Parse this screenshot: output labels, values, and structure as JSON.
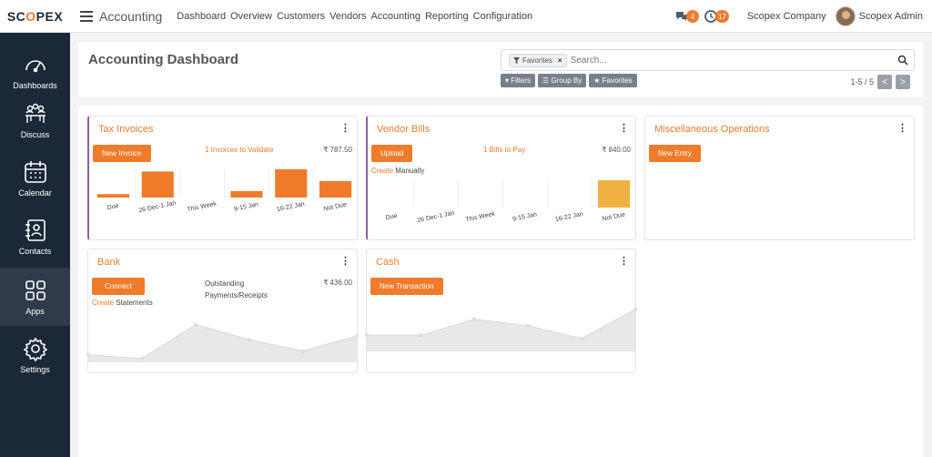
{
  "logo": {
    "part1": "SC",
    "part2": "O",
    "part3": "PEX"
  },
  "sidebar": {
    "items": [
      {
        "label": "Dashboards",
        "icon": "speedometer-icon"
      },
      {
        "label": "Discuss",
        "icon": "people-discuss-icon"
      },
      {
        "label": "Calendar",
        "icon": "calendar-icon"
      },
      {
        "label": "Contacts",
        "icon": "contacts-book-icon"
      },
      {
        "label": "Apps",
        "icon": "apps-grid-icon"
      },
      {
        "label": "Settings",
        "icon": "gear-icon"
      }
    ],
    "active": "Apps"
  },
  "topbar": {
    "app_title": "Accounting",
    "menu": [
      "Dashboard",
      "Overview",
      "Customers",
      "Vendors",
      "Accounting",
      "Reporting",
      "Configuration"
    ],
    "messages_count": "4",
    "activities_count": "17",
    "company": "Scopex Company",
    "user": "Scopex Admin"
  },
  "control": {
    "title": "Accounting Dashboard",
    "facet": "Favorites",
    "search_placeholder": "Search...",
    "filters_label": "Filters",
    "groupby_label": "Group By",
    "favorites_label": "Favorites",
    "pager": "1-5 / 5",
    "prev": "<",
    "next": ">"
  },
  "cards": {
    "tax": {
      "title": "Tax Invoices",
      "button": "New Invoice",
      "link": "1 Invoices to Validate",
      "amount": "₹ 787.50"
    },
    "vendor": {
      "title": "Vendor Bills",
      "button": "Upload",
      "link": "1 Bills to Pay",
      "amount": "₹ 840.00",
      "create": "Create",
      "create_rest": " Manually"
    },
    "misc": {
      "title": "Miscellaneous Operations",
      "button": "New Entry"
    },
    "bank": {
      "title": "Bank",
      "button": "Connect",
      "outstanding_1": "Outstanding",
      "outstanding_2": "Payments/Receipts",
      "amount": "₹ 436.00",
      "create": "Create",
      "create_rest": " Statements"
    },
    "cash": {
      "title": "Cash",
      "button": "New Transaction"
    }
  },
  "chart_data": [
    {
      "type": "bar",
      "chart": "tax_invoices",
      "categories": [
        "Due",
        "26 Dec-1 Jan",
        "This Week",
        "9-15 Jan",
        "16-22 Jan",
        "Not Due"
      ],
      "values": [
        0.8,
        6,
        0,
        1.5,
        6.5,
        3.8
      ],
      "color": "#f07b2b"
    },
    {
      "type": "bar",
      "chart": "vendor_bills",
      "categories": [
        "Due",
        "26 Dec-1 Jan",
        "This Week",
        "9-15 Jan",
        "16-22 Jan",
        "Not Due"
      ],
      "values": [
        0,
        0,
        0,
        0,
        0,
        5
      ],
      "color": "#f0b143"
    },
    {
      "type": "area",
      "chart": "bank",
      "values": [
        2,
        1,
        10,
        6,
        3,
        7
      ],
      "color": "#e8e8e8"
    },
    {
      "type": "area",
      "chart": "cash",
      "values": [
        5,
        5,
        10,
        8,
        4,
        13
      ],
      "color": "#e8e8e8"
    }
  ]
}
